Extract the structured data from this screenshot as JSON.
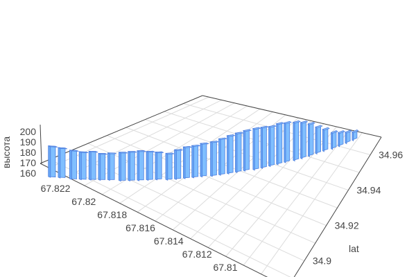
{
  "chart_data": {
    "type": "bar3d",
    "xaxis": {
      "title": "",
      "range": [
        67.8085,
        67.8225
      ],
      "ticks": [
        "67.822",
        "67.82",
        "67.818",
        "67.816",
        "67.814",
        "67.812",
        "67.81"
      ]
    },
    "yaxis": {
      "title": "lat",
      "range": [
        34.885,
        34.97
      ],
      "ticks": [
        "34.96",
        "34.94",
        "34.92",
        "34.9"
      ]
    },
    "zaxis": {
      "title": "высота",
      "range": [
        155,
        205
      ],
      "ticks": [
        "200",
        "190",
        "180",
        "170",
        "160"
      ]
    },
    "grid": true,
    "bar_color": "#80bfff",
    "edge_color": "#4d7fe0",
    "lon": [
      67.8214,
      67.8211,
      67.8207,
      67.8204,
      67.8201,
      67.8198,
      67.8195,
      67.8191,
      67.8188,
      67.8185,
      67.8182,
      67.8179,
      67.8175,
      67.8172,
      67.8169,
      67.8166,
      67.8163,
      67.8159,
      67.8156,
      67.8153,
      67.815,
      67.8147,
      67.8143,
      67.814,
      67.8137,
      67.8134,
      67.8131,
      67.8127,
      67.8124,
      67.8121,
      67.8118,
      67.8115,
      67.8111,
      67.8108,
      67.8105,
      67.8102
    ],
    "lat": [
      34.8808,
      34.8832,
      34.8856,
      34.888,
      34.8905,
      34.8929,
      34.8953,
      34.8978,
      34.9002,
      34.9026,
      34.9051,
      34.9075,
      34.9099,
      34.9123,
      34.9148,
      34.9172,
      34.9196,
      34.9221,
      34.9245,
      34.9269,
      34.9294,
      34.9318,
      34.9342,
      34.9366,
      34.9391,
      34.9415,
      34.9439,
      34.9464,
      34.9488,
      34.9512,
      34.9537,
      34.9561,
      34.9585,
      34.9609,
      34.9634,
      34.9658
    ],
    "z": [
      190,
      189,
      188,
      187,
      188,
      186,
      187,
      189,
      190,
      191,
      190,
      189,
      188,
      192,
      195,
      196,
      198,
      200,
      203,
      206,
      208,
      210,
      212,
      212,
      211,
      213,
      212,
      211,
      208,
      203,
      195,
      188,
      180,
      176,
      172,
      168
    ]
  }
}
